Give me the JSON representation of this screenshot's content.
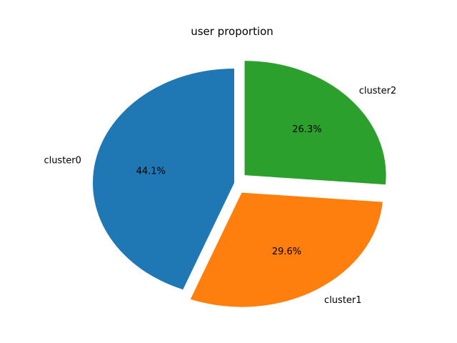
{
  "chart_data": {
    "type": "pie",
    "title": "user proportion",
    "labels": [
      "cluster0",
      "cluster1",
      "cluster2"
    ],
    "values": [
      44.1,
      29.6,
      26.3
    ],
    "percent_labels": [
      "44.1%",
      "29.6%",
      "26.3%"
    ],
    "colors": [
      "#1f77b4",
      "#ff7f0e",
      "#2ca02c"
    ],
    "explode": [
      0,
      0.1,
      0.1
    ],
    "start_angle_deg": 90,
    "direction": "counterclockwise"
  }
}
